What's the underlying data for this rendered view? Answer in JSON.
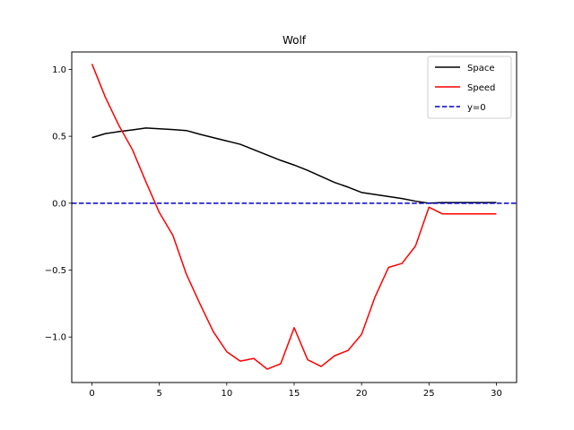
{
  "chart_data": {
    "type": "line",
    "title": "Wolf",
    "xlabel": "",
    "ylabel": "",
    "xlim": [
      -1.5,
      31.5
    ],
    "ylim": [
      -1.34,
      1.13
    ],
    "xticks": [
      0,
      5,
      10,
      15,
      20,
      25,
      30
    ],
    "yticks": [
      -1.0,
      -0.5,
      0.0,
      0.5,
      1.0
    ],
    "ytick_labels": [
      "−1.0",
      "−0.5",
      "0.0",
      "0.5",
      "1.0"
    ],
    "grid": false,
    "legend_position": "top-right",
    "x": [
      0,
      1,
      2,
      3,
      4,
      5,
      6,
      7,
      8,
      9,
      10,
      11,
      12,
      13,
      14,
      15,
      16,
      17,
      18,
      19,
      20,
      21,
      22,
      23,
      24,
      25,
      26,
      27,
      28,
      29,
      30
    ],
    "series": [
      {
        "name": "Space",
        "color": "#000000",
        "style": "solid",
        "values": [
          0.49,
          0.52,
          0.535,
          0.548,
          0.562,
          0.556,
          0.55,
          0.543,
          0.515,
          0.49,
          0.465,
          0.44,
          0.4,
          0.36,
          0.32,
          0.285,
          0.245,
          0.2,
          0.155,
          0.12,
          0.08,
          0.065,
          0.05,
          0.035,
          0.015,
          0.0,
          0.005,
          0.005,
          0.005,
          0.005,
          0.005
        ]
      },
      {
        "name": "Speed",
        "color": "#ff0000",
        "style": "solid",
        "values": [
          1.04,
          0.79,
          0.58,
          0.4,
          0.16,
          -0.07,
          -0.24,
          -0.53,
          -0.75,
          -0.96,
          -1.11,
          -1.18,
          -1.16,
          -1.24,
          -1.2,
          -0.93,
          -1.17,
          -1.22,
          -1.14,
          -1.1,
          -0.98,
          -0.7,
          -0.48,
          -0.45,
          -0.32,
          -0.03,
          -0.08,
          -0.08,
          -0.08,
          -0.08,
          -0.08
        ]
      },
      {
        "name": "y=0",
        "color": "#0000cc",
        "style": "dashed",
        "hline": 0
      }
    ]
  }
}
